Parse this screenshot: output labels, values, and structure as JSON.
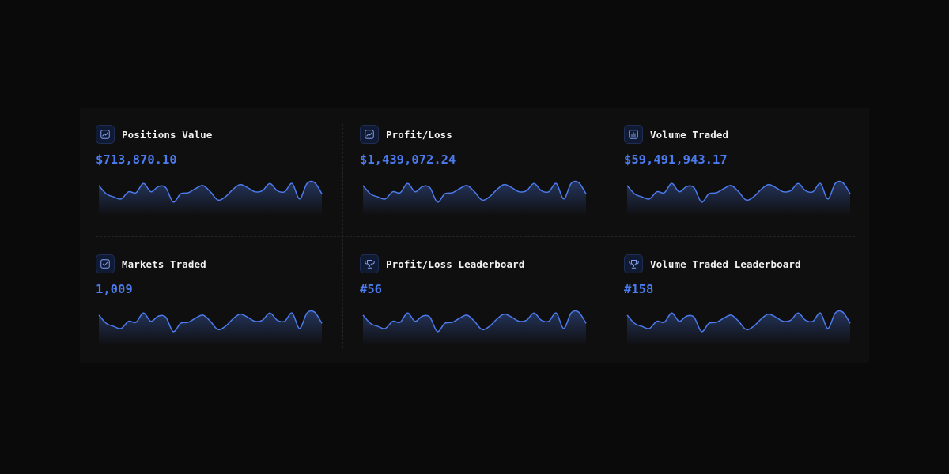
{
  "colors": {
    "accent": "#4c7bf0",
    "background": "#0a0a0a",
    "panel": "#0f0f0f"
  },
  "cards": [
    {
      "label": "Positions Value",
      "value": "$713,870.10",
      "icon": "trend-line-icon"
    },
    {
      "label": "Profit/Loss",
      "value": "$1,439,072.24",
      "icon": "trend-line-icon"
    },
    {
      "label": "Volume Traded",
      "value": "$59,491,943.17",
      "icon": "bar-chart-icon"
    },
    {
      "label": "Markets Traded",
      "value": "1,009",
      "icon": "check-square-icon"
    },
    {
      "label": "Profit/Loss Leaderboard",
      "value": "#56",
      "icon": "trophy-icon"
    },
    {
      "label": "Volume Traded Leaderboard",
      "value": "#158",
      "icon": "trophy-icon"
    }
  ],
  "sparkline": [
    0.85,
    0.45,
    0.3,
    0.2,
    0.55,
    0.5,
    0.95,
    0.55,
    0.8,
    0.75,
    0.05,
    0.45,
    0.5,
    0.7,
    0.85,
    0.55,
    0.15,
    0.3,
    0.65,
    0.9,
    0.75,
    0.55,
    0.6,
    0.95,
    0.6,
    0.55,
    0.95,
    0.2,
    0.95,
    1.0,
    0.45
  ]
}
